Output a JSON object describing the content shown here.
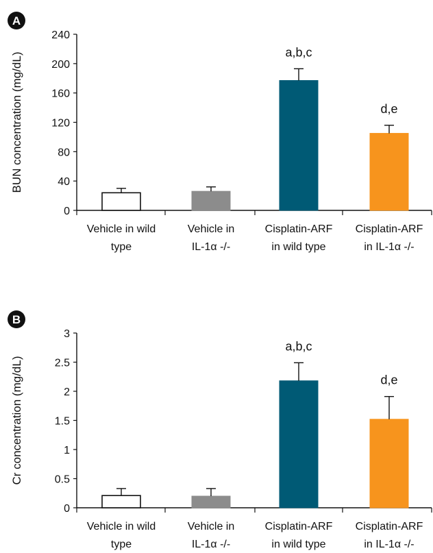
{
  "chart_data": [
    {
      "panel": "A",
      "type": "bar",
      "title": "",
      "xlabel": "",
      "ylabel": "BUN concentration (mg/dL)",
      "ylim": [
        0,
        240
      ],
      "yticks": [
        0,
        40,
        80,
        120,
        160,
        200,
        240
      ],
      "categories": [
        [
          "Vehicle in wild",
          "type"
        ],
        [
          "Vehicle in",
          "IL-1α -/-"
        ],
        [
          "Cisplatin-ARF",
          "in wild type"
        ],
        [
          "Cisplatin-ARF",
          "in IL-1α -/-"
        ]
      ],
      "values": [
        24,
        26,
        177,
        105
      ],
      "errors": [
        6,
        6,
        16,
        11
      ],
      "annotations": [
        "",
        "",
        "a,b,c",
        "d,e"
      ],
      "colors": [
        "#ffffff",
        "#8c8c8c",
        "#005a75",
        "#f7941d"
      ],
      "grid": false
    },
    {
      "panel": "B",
      "type": "bar",
      "title": "",
      "xlabel": "",
      "ylabel": "Cr concentration (mg/dL)",
      "ylim": [
        0,
        3
      ],
      "yticks": [
        0,
        0.5,
        1,
        1.5,
        2,
        2.5,
        3
      ],
      "categories": [
        [
          "Vehicle in wild",
          "type"
        ],
        [
          "Vehicle in",
          "IL-1α -/-"
        ],
        [
          "Cisplatin-ARF",
          "in wild type"
        ],
        [
          "Cisplatin-ARF",
          "in IL-1α -/-"
        ]
      ],
      "values": [
        0.21,
        0.2,
        2.18,
        1.52
      ],
      "errors": [
        0.12,
        0.13,
        0.31,
        0.39
      ],
      "annotations": [
        "",
        "",
        "a,b,c",
        "d,e"
      ],
      "colors": [
        "#ffffff",
        "#8c8c8c",
        "#005a75",
        "#f7941d"
      ],
      "grid": false
    }
  ]
}
